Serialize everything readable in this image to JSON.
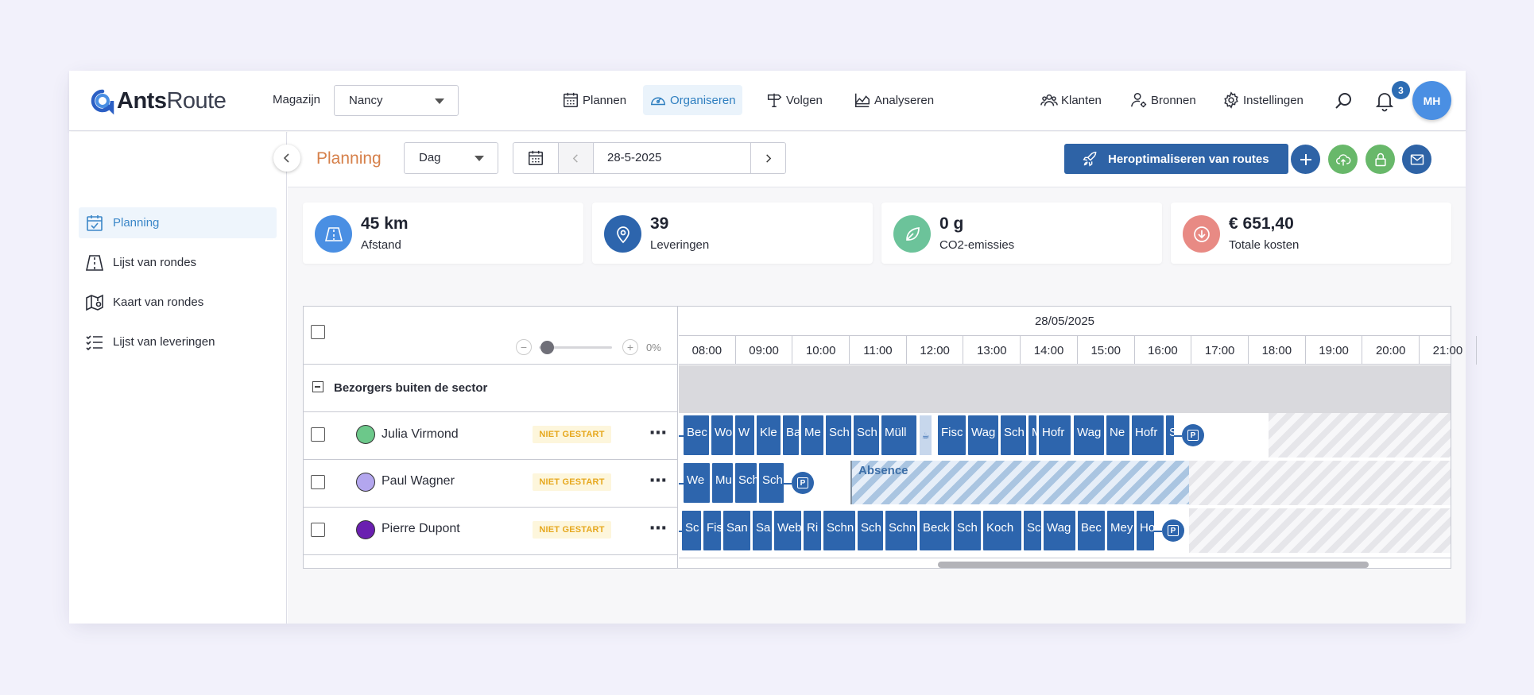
{
  "app": {
    "logo_bold": "Ants",
    "logo_rest": "Route"
  },
  "header": {
    "warehouse_label": "Magazijn",
    "warehouse_value": "Nancy",
    "nav": [
      {
        "label": "Plannen",
        "icon": "calendar-grid-icon"
      },
      {
        "label": "Organiseren",
        "icon": "speedometer-icon"
      },
      {
        "label": "Volgen",
        "icon": "signpost-icon"
      },
      {
        "label": "Analyseren",
        "icon": "chart-area-icon"
      }
    ],
    "right_nav": [
      {
        "label": "Klanten",
        "icon": "users-icon"
      },
      {
        "label": "Bronnen",
        "icon": "user-gear-icon"
      },
      {
        "label": "Instellingen",
        "icon": "gear-icon"
      }
    ],
    "notification_count": "3",
    "avatar_initials": "MH"
  },
  "sidebar": {
    "items": [
      {
        "label": "Planning",
        "icon": "calendar-check-icon",
        "active": true
      },
      {
        "label": "Lijst van rondes",
        "icon": "road-icon"
      },
      {
        "label": "Kaart van rondes",
        "icon": "map-pin-icon"
      },
      {
        "label": "Lijst van leveringen",
        "icon": "checklist-icon"
      }
    ]
  },
  "toolbar": {
    "title": "Planning",
    "view_value": "Dag",
    "date_value": "28-5-2025",
    "reoptimize_label": "Heroptimaliseren van routes"
  },
  "stats": [
    {
      "value": "45 km",
      "label": "Afstand",
      "color": "#4a8fe3",
      "icon": "road-icon"
    },
    {
      "value": "39",
      "label": "Leveringen",
      "color": "#2d65ad",
      "icon": "map-pin-icon"
    },
    {
      "value": "0 g",
      "label": "CO2-emissies",
      "color": "#6cc39a",
      "icon": "leaf-icon"
    },
    {
      "value": "€ 651,40",
      "label": "Totale kosten",
      "color": "#e88a84",
      "icon": "download-circle-icon"
    }
  ],
  "gantt": {
    "zoom_percent": "0%",
    "date": "28/05/2025",
    "hours": [
      "08:00",
      "09:00",
      "10:00",
      "11:00",
      "12:00",
      "13:00",
      "14:00",
      "15:00",
      "16:00",
      "17:00",
      "18:00",
      "19:00",
      "20:00",
      "21:00"
    ],
    "group_label": "Bezorgers buiten de sector",
    "absence_label": "Absence",
    "drivers": [
      {
        "name": "Julia Virmond",
        "status": "NIET GESTART",
        "color": "#6cc88a",
        "tasks": [
          "Bec",
          "Wo",
          "W",
          "Kle",
          "Ba",
          "Me",
          "Sch",
          "Sch",
          "Müll",
          "Fisc",
          "Wag",
          "Sch",
          "M",
          "Hofr",
          "Wag",
          "Ne",
          "Hofr",
          "S"
        ]
      },
      {
        "name": "Paul Wagner",
        "status": "NIET GESTART",
        "color": "#b3a6ee",
        "tasks": [
          "We",
          "Mu",
          "Sch",
          "Sch"
        ]
      },
      {
        "name": "Pierre Dupont",
        "status": "NIET GESTART",
        "color": "#6a1fb0",
        "tasks": [
          "Sc",
          "Fis",
          "San",
          "Sa",
          "Web",
          "Ri",
          "Schn",
          "Sch",
          "Schn",
          "Beck",
          "Sch",
          "Koch",
          "Sc",
          "Wag",
          "Bec",
          "Mey",
          "Ho"
        ]
      }
    ]
  }
}
